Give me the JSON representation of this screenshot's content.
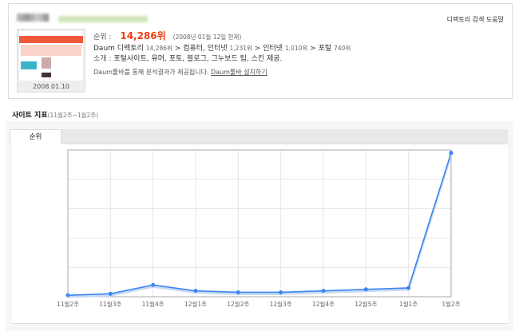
{
  "header": {
    "help_link": "디렉토리 검색 도움말"
  },
  "site": {
    "thumbnail_date": "2008.01.10",
    "rank_label": "순위 :",
    "rank_value": "14,286위",
    "rank_date": "(2008년 01월 12일 현재)",
    "directory": {
      "root": "Daum 디렉토리",
      "root_rank": "14,286위",
      "path": [
        {
          "name": "컴퓨터, 인터넷",
          "rank": "1,231위"
        },
        {
          "name": "인터넷",
          "rank": "1,010위"
        },
        {
          "name": "포털",
          "rank": "740위"
        }
      ],
      "separator": ">"
    },
    "intro_label": "소개 :",
    "intro": "포털사이트, 유머, 포토, 블로그, 그누보드 팁, 스킨 제공.",
    "toolbar_note": "Daum툴바를 통해 분석결과가 제공됩니다.",
    "toolbar_link": "Daum툴바 설치하기"
  },
  "section": {
    "title": "사이트 지표",
    "range": "(11월2주~1월2주)"
  },
  "tabs": [
    {
      "label": "순위",
      "active": true
    }
  ],
  "colors": {
    "accent": "#f03c0f",
    "line": "#3a86f0"
  },
  "chart_data": {
    "type": "line",
    "categories": [
      "11월2주",
      "11월3주",
      "11월4주",
      "12월1주",
      "12월2주",
      "12월3주",
      "12월4주",
      "12월5주",
      "1월1주",
      "1월2주"
    ],
    "values": [
      1,
      2,
      8,
      4,
      3,
      3,
      4,
      5,
      6,
      98
    ],
    "ylim": [
      0,
      100
    ],
    "grid": true,
    "title": "",
    "xlabel": "",
    "ylabel": ""
  }
}
